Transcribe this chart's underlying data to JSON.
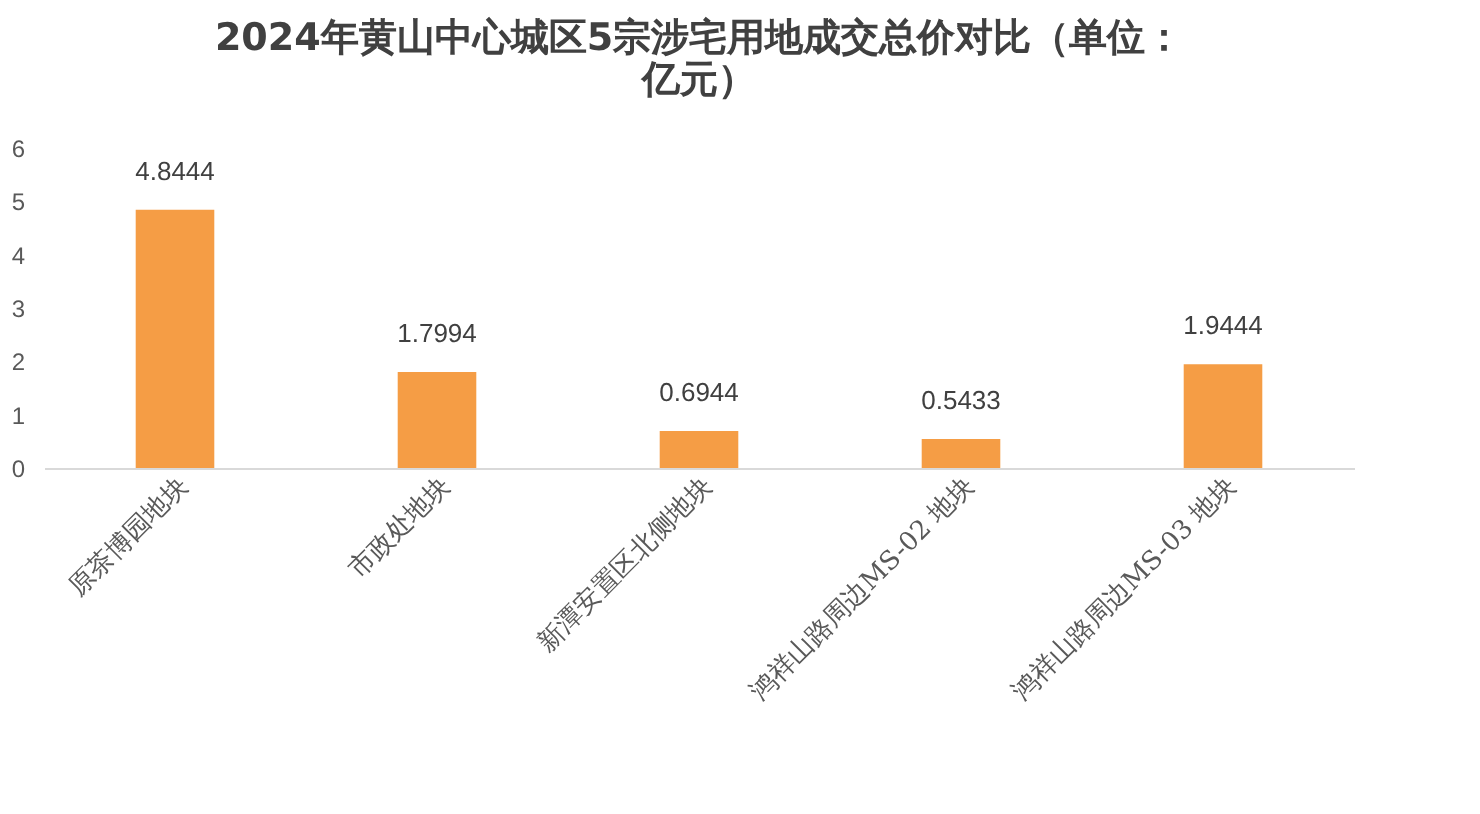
{
  "chart_data": {
    "type": "bar",
    "title": "2024年黄山中心城区5宗涉宅用地成交总价对比（单位：亿元）",
    "categories": [
      "原茶博园地块",
      "市政处地块",
      "新潭安置区北侧地块",
      "鸿祥山路周边MS-02 地块",
      "鸿祥山路周边MS-03 地块"
    ],
    "values": [
      4.8444,
      1.7994,
      0.6944,
      0.5433,
      1.9444
    ],
    "color": "#f59d45",
    "ylim": [
      0,
      6
    ],
    "yticks": [
      0,
      1,
      2,
      3,
      4,
      5,
      6
    ],
    "data_labels": true
  }
}
